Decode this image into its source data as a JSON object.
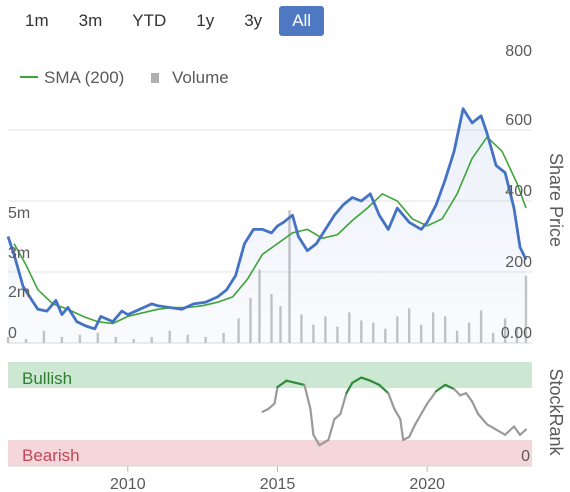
{
  "range_selector": {
    "options": [
      "1m",
      "3m",
      "YTD",
      "1y",
      "3y",
      "All"
    ],
    "selected": "All",
    "active_color": "#4e79c2"
  },
  "chart_data": [
    {
      "type": "line",
      "yaxis_label": "Share Price",
      "yticks_right": [
        "200",
        "400",
        "600",
        "800"
      ],
      "price_range": [
        0,
        800
      ],
      "yticks_left": [
        "0",
        "2m",
        "3m",
        "5m"
      ],
      "y_bottom_label": "0.00",
      "legend": [
        {
          "label": "SMA (200)",
          "color": "#3fa33a"
        },
        {
          "label": "Volume",
          "color": "#b0b0b0"
        }
      ],
      "legend_position": "top-left",
      "series": [
        {
          "name": "Share Price",
          "color": "#4472c4",
          "x": [
            2006.0,
            2006.2,
            2006.5,
            2006.8,
            2007.0,
            2007.3,
            2007.6,
            2007.8,
            2008.0,
            2008.3,
            2008.6,
            2008.9,
            2009.1,
            2009.5,
            2009.8,
            2010.0,
            2010.4,
            2010.8,
            2011.0,
            2011.4,
            2011.8,
            2012.2,
            2012.6,
            2013.0,
            2013.3,
            2013.6,
            2013.9,
            2014.2,
            2014.5,
            2014.8,
            2015.0,
            2015.2,
            2015.5,
            2015.7,
            2016.0,
            2016.3,
            2016.6,
            2016.9,
            2017.2,
            2017.5,
            2017.8,
            2018.1,
            2018.4,
            2018.7,
            2019.0,
            2019.4,
            2019.8,
            2020.0,
            2020.3,
            2020.6,
            2020.9,
            2021.2,
            2021.5,
            2021.8,
            2022.0,
            2022.3,
            2022.6,
            2022.9,
            2023.1,
            2023.3
          ],
          "values": [
            300,
            250,
            160,
            120,
            95,
            90,
            120,
            80,
            100,
            60,
            48,
            40,
            75,
            60,
            90,
            80,
            95,
            110,
            105,
            100,
            95,
            110,
            115,
            130,
            150,
            190,
            280,
            320,
            320,
            310,
            330,
            340,
            360,
            300,
            260,
            280,
            320,
            360,
            390,
            410,
            400,
            420,
            360,
            320,
            380,
            340,
            320,
            340,
            390,
            460,
            540,
            660,
            620,
            640,
            590,
            500,
            480,
            380,
            270,
            235
          ],
          "y_unit": "price"
        },
        {
          "name": "SMA (200)",
          "color": "#3fa33a",
          "x": [
            2006.2,
            2006.6,
            2007.0,
            2007.5,
            2008.0,
            2008.5,
            2009.0,
            2009.5,
            2010.0,
            2010.5,
            2011.0,
            2011.5,
            2012.0,
            2012.5,
            2013.0,
            2013.5,
            2014.0,
            2014.5,
            2015.0,
            2015.5,
            2016.0,
            2016.5,
            2017.0,
            2017.5,
            2018.0,
            2018.5,
            2019.0,
            2019.5,
            2020.0,
            2020.5,
            2021.0,
            2021.5,
            2022.0,
            2022.5,
            2023.0,
            2023.3
          ],
          "values": [
            280,
            220,
            150,
            110,
            95,
            75,
            60,
            55,
            75,
            85,
            95,
            100,
            100,
            105,
            115,
            130,
            180,
            250,
            280,
            310,
            320,
            295,
            305,
            345,
            380,
            420,
            400,
            350,
            330,
            350,
            420,
            520,
            580,
            540,
            450,
            380
          ],
          "y_unit": "price"
        }
      ],
      "volume": {
        "color": "#c4c4c4",
        "x": [
          2006.0,
          2006.6,
          2007.2,
          2007.8,
          2008.4,
          2009.0,
          2009.6,
          2010.2,
          2010.8,
          2011.4,
          2012.0,
          2012.6,
          2013.2,
          2013.7,
          2014.1,
          2014.4,
          2014.8,
          2015.1,
          2015.4,
          2015.8,
          2016.2,
          2016.6,
          2017.0,
          2017.4,
          2017.8,
          2018.2,
          2018.6,
          2019.0,
          2019.4,
          2019.8,
          2020.2,
          2020.6,
          2021.0,
          2021.4,
          2021.8,
          2022.2,
          2022.6,
          2023.0,
          2023.3
        ],
        "values_m": [
          0.3,
          0.2,
          0.6,
          0.3,
          0.4,
          0.5,
          0.3,
          0.2,
          0.3,
          0.6,
          0.4,
          0.3,
          0.5,
          1.2,
          2.2,
          3.6,
          2.4,
          1.8,
          6.5,
          1.4,
          0.9,
          1.3,
          0.8,
          1.5,
          1.1,
          1.0,
          0.7,
          1.3,
          1.7,
          0.9,
          1.5,
          1.3,
          0.6,
          1.0,
          1.6,
          0.5,
          1.2,
          0.8,
          3.3
        ]
      },
      "volume_range_m": [
        0,
        7
      ],
      "xlim": [
        2006.0,
        2023.5
      ]
    },
    {
      "type": "line",
      "yaxis_label": "StockRank",
      "y_bottom_label": "0",
      "band_labels": {
        "top": "Bullish",
        "bottom": "Bearish"
      },
      "band_colors": {
        "top": "#cde8d2",
        "bottom": "#f5d6da",
        "top_text": "#2e7d32",
        "bottom_text": "#c0475a"
      },
      "xticks": [
        "2010",
        "2015",
        "2020"
      ],
      "xtick_values": [
        2010,
        2015,
        2020
      ],
      "series": [
        {
          "name": "StockRank",
          "x": [
            2014.5,
            2014.7,
            2014.9,
            2015.0,
            2015.3,
            2015.6,
            2015.9,
            2016.1,
            2016.2,
            2016.4,
            2016.7,
            2016.9,
            2017.1,
            2017.3,
            2017.5,
            2017.8,
            2018.1,
            2018.4,
            2018.7,
            2018.9,
            2019.1,
            2019.2,
            2019.4,
            2019.6,
            2019.8,
            2020.0,
            2020.3,
            2020.6,
            2020.9,
            2021.1,
            2021.3,
            2021.5,
            2021.7,
            2022.0,
            2022.3,
            2022.6,
            2022.9,
            2023.1,
            2023.3
          ],
          "values": [
            52,
            55,
            60,
            76,
            82,
            80,
            78,
            55,
            30,
            20,
            25,
            45,
            50,
            70,
            80,
            85,
            82,
            78,
            70,
            55,
            45,
            25,
            28,
            40,
            50,
            60,
            72,
            78,
            74,
            68,
            70,
            62,
            50,
            40,
            35,
            30,
            38,
            30,
            35
          ],
          "bullish_threshold": 70
        }
      ]
    }
  ]
}
